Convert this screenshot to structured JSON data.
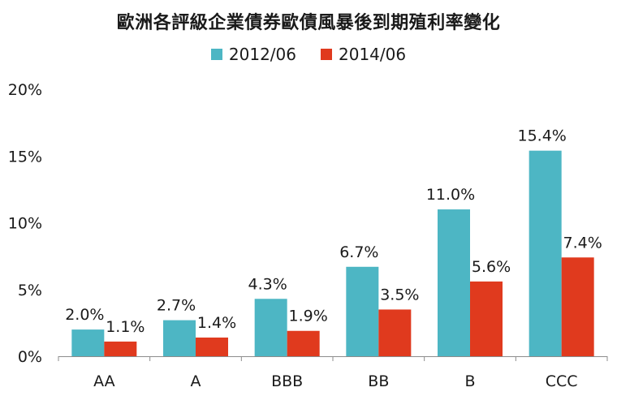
{
  "chart_data": {
    "type": "bar",
    "title": "歐洲各評級企業債券歐債風暴後到期殖利率變化",
    "xlabel": "",
    "ylabel": "",
    "categories": [
      "AA",
      "A",
      "BBB",
      "BB",
      "B",
      "CCC"
    ],
    "series": [
      {
        "name": "2012/06",
        "color": "#4db6c4",
        "values": [
          2.0,
          2.7,
          4.3,
          6.7,
          11.0,
          15.4
        ],
        "labels": [
          "2.0%",
          "2.7%",
          "4.3%",
          "6.7%",
          "11.0%",
          "15.4%"
        ]
      },
      {
        "name": "2014/06",
        "color": "#e03a1e",
        "values": [
          1.1,
          1.4,
          1.9,
          3.5,
          5.6,
          7.4
        ],
        "labels": [
          "1.1%",
          "1.4%",
          "1.9%",
          "3.5%",
          "5.6%",
          "7.4%"
        ]
      }
    ],
    "ylim": [
      0,
      20
    ],
    "yticks": [
      0,
      5,
      10,
      15,
      20
    ],
    "ytick_labels": [
      "0%",
      "5%",
      "10%",
      "15%",
      "20%"
    ],
    "grid": false,
    "legend_position": "top-center"
  }
}
